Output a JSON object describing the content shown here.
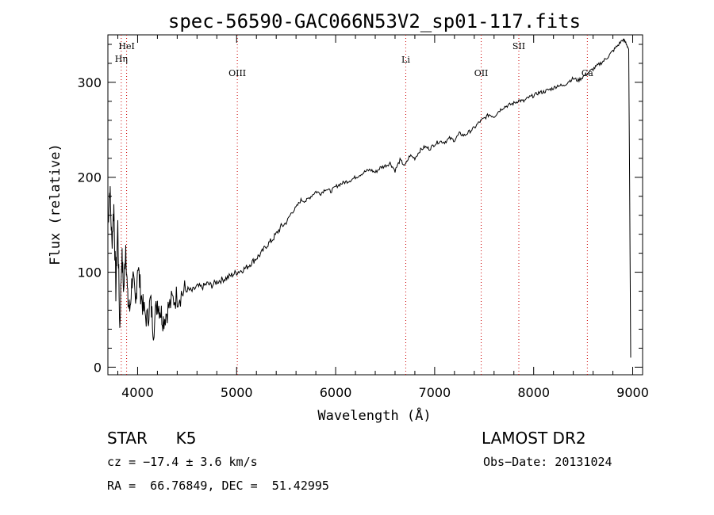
{
  "chart_data": {
    "type": "line",
    "title": "spec-56590-GAC066N53V2_sp01-117.fits",
    "xlabel": "Wavelength (Å)",
    "ylabel": "Flux (relative)",
    "xlim": [
      3700,
      9100
    ],
    "ylim": [
      -8,
      350
    ],
    "x_ticks": [
      4000,
      5000,
      6000,
      7000,
      8000,
      9000
    ],
    "y_ticks": [
      0,
      100,
      200,
      300
    ],
    "grid": false,
    "series": [
      {
        "color": "#000000",
        "x": [
          3700,
          3720,
          3740,
          3760,
          3780,
          3800,
          3820,
          3840,
          3860,
          3880,
          3900,
          3920,
          3950,
          3980,
          4000,
          4030,
          4060,
          4100,
          4130,
          4160,
          4200,
          4230,
          4260,
          4300,
          4350,
          4400,
          4450,
          4500,
          4550,
          4600,
          4650,
          4700,
          4750,
          4800,
          4850,
          4900,
          4950,
          5000,
          5050,
          5100,
          5150,
          5200,
          5250,
          5300,
          5350,
          5400,
          5450,
          5500,
          5550,
          5600,
          5650,
          5700,
          5750,
          5800,
          5850,
          5900,
          5950,
          6000,
          6050,
          6100,
          6150,
          6200,
          6250,
          6300,
          6350,
          6400,
          6450,
          6500,
          6550,
          6600,
          6650,
          6700,
          6750,
          6800,
          6850,
          6900,
          6950,
          7000,
          7050,
          7100,
          7150,
          7200,
          7250,
          7300,
          7350,
          7400,
          7450,
          7500,
          7550,
          7600,
          7650,
          7700,
          7750,
          7800,
          7850,
          7900,
          7950,
          8000,
          8050,
          8100,
          8150,
          8200,
          8250,
          8300,
          8350,
          8400,
          8450,
          8500,
          8550,
          8600,
          8650,
          8700,
          8750,
          8800,
          8850,
          8900,
          8930,
          8960,
          8980
        ],
        "values": [
          150,
          190,
          130,
          170,
          80,
          150,
          40,
          120,
          80,
          130,
          70,
          60,
          100,
          60,
          110,
          80,
          60,
          50,
          70,
          40,
          70,
          60,
          50,
          60,
          70,
          75,
          78,
          82,
          80,
          85,
          84,
          88,
          86,
          90,
          92,
          94,
          97,
          100,
          102,
          105,
          110,
          115,
          120,
          128,
          133,
          140,
          148,
          152,
          162,
          168,
          176,
          175,
          180,
          185,
          183,
          188,
          185,
          190,
          193,
          195,
          197,
          200,
          203,
          206,
          208,
          205,
          210,
          212,
          215,
          207,
          218,
          212,
          223,
          220,
          228,
          232,
          230,
          235,
          238,
          237,
          241,
          239,
          246,
          244,
          248,
          252,
          258,
          262,
          266,
          264,
          270,
          274,
          276,
          278,
          281,
          280,
          284,
          286,
          289,
          290,
          292,
          294,
          297,
          296,
          301,
          304,
          302,
          306,
          310,
          314,
          318,
          322,
          327,
          333,
          339,
          345,
          342,
          335,
          10
        ]
      }
    ],
    "annotations": [
      {
        "label": "HeI",
        "x": 3889
      },
      {
        "label": "Hη",
        "x": 3835
      },
      {
        "label": "OIII",
        "x": 5007
      },
      {
        "label": "Li",
        "x": 6708
      },
      {
        "label": "OII",
        "x": 7470
      },
      {
        "label": "SII",
        "x": 7850
      },
      {
        "label": "Ca",
        "x": 8542
      }
    ]
  },
  "info": {
    "class_label": "STAR",
    "subclass": "K5",
    "survey": "LAMOST DR2",
    "cz": "cz = −17.4 ± 3.6 km/s",
    "obs_date": "Obs−Date: 20131024",
    "radec": "RA =  66.76849, DEC =  51.42995"
  }
}
